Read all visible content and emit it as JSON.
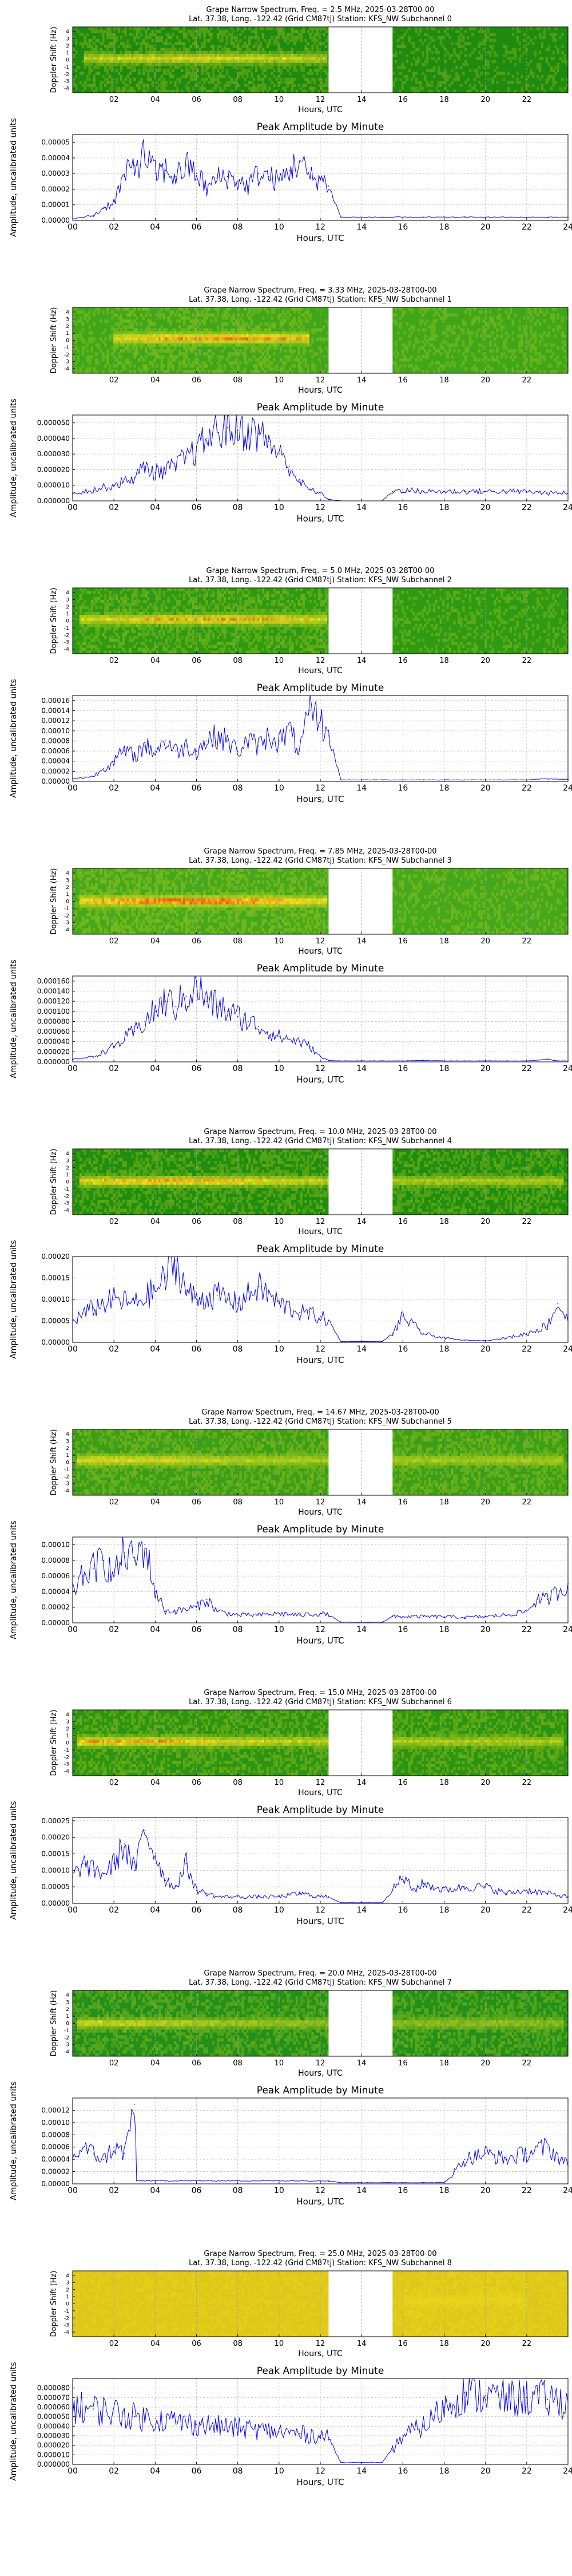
{
  "figure": {
    "y_axis_spec": "Doppler Shift (Hz)",
    "y_axis_amp": "Amplitude, uncalibrated units",
    "x_axis": "Hours, UTC",
    "amp_title": "Peak Amplitude by Minute",
    "spec_yticks": [
      "4",
      "3",
      "2",
      "1",
      "0",
      "-1",
      "-2",
      "-3",
      "-4"
    ],
    "xticks_spec": [
      "02",
      "04",
      "06",
      "08",
      "10",
      "12",
      "14",
      "16",
      "18",
      "20",
      "22"
    ],
    "xticks_amp": [
      "00",
      "02",
      "04",
      "06",
      "08",
      "10",
      "12",
      "14",
      "16",
      "18",
      "20",
      "22",
      "24"
    ]
  },
  "chart_data": [
    {
      "type": "heatmap",
      "subchannel": 0,
      "title_line1": "Grape Narrow Spectrum, Freq. = 2.5 MHz, 2025-03-28T00-00",
      "title_line2": "Lat. 37.38, Long. -122.42 (Grid CM87tj) Station: KFS_NW Subchannel 0",
      "xlabel": "Hours, UTC",
      "ylabel": "Doppler Shift (Hz)",
      "xlim": [
        0,
        24
      ],
      "ylim": [
        -5,
        5
      ],
      "gap_hours": [
        12.4,
        15.5
      ],
      "background": "#1e8a10",
      "signal": {
        "center_hz": 0.2,
        "start": 0.5,
        "end": 12.3,
        "peak_hour": 6.0,
        "intensity": 0.7
      }
    },
    {
      "type": "line",
      "subchannel": 0,
      "title": "Peak Amplitude by Minute",
      "xlabel": "Hours, UTC",
      "ylabel": "Amplitude, uncalibrated units",
      "xlim": [
        0,
        24
      ],
      "ylim": [
        0,
        5.5e-05
      ],
      "ytick_labels": [
        "0.00000",
        "0.00001",
        "0.00002",
        "0.00003",
        "0.00004",
        "0.00005"
      ],
      "x": [
        0,
        1,
        1.5,
        2,
        2.5,
        3,
        3.5,
        4,
        4.5,
        5,
        5.5,
        6,
        6.5,
        7,
        7.5,
        8,
        8.5,
        9,
        9.5,
        10,
        10.5,
        11,
        11.5,
        12,
        12.4,
        13,
        14,
        15,
        16,
        17,
        18,
        19,
        20,
        21,
        22,
        23,
        24
      ],
      "y": [
        1e-06,
        3e-06,
        8e-06,
        1.2e-05,
        2.8e-05,
        3.5e-05,
        4.2e-05,
        3e-05,
        3.2e-05,
        2.8e-05,
        3.5e-05,
        3e-05,
        2e-05,
        2.7e-05,
        2.8e-05,
        2.5e-05,
        2.2e-05,
        3e-05,
        2.8e-05,
        2.5e-05,
        3.2e-05,
        3.8e-05,
        2.7e-05,
        2.7e-05,
        2.2e-05,
        2e-06,
        2e-06,
        2e-06,
        2e-06,
        2e-06,
        2e-06,
        2e-06,
        2e-06,
        2e-06,
        2e-06,
        2e-06,
        2e-06
      ]
    },
    {
      "type": "heatmap",
      "subchannel": 1,
      "title_line1": "Grape Narrow Spectrum, Freq. = 3.33 MHz, 2025-03-28T00-00",
      "title_line2": "Lat. 37.38, Long. -122.42 (Grid CM87tj) Station: KFS_NW Subchannel 1",
      "xlabel": "Hours, UTC",
      "ylabel": "Doppler Shift (Hz)",
      "xlim": [
        0,
        24
      ],
      "ylim": [
        -5,
        5
      ],
      "gap_hours": [
        12.4,
        15.5
      ],
      "background": "#3fa61a",
      "signal": {
        "center_hz": 0.3,
        "start": 2.0,
        "end": 11.5,
        "peak_hour": 7.5,
        "intensity": 0.9
      }
    },
    {
      "type": "line",
      "subchannel": 1,
      "title": "Peak Amplitude by Minute",
      "xlabel": "Hours, UTC",
      "ylabel": "Amplitude, uncalibrated units",
      "xlim": [
        0,
        24
      ],
      "ylim": [
        0,
        5.5e-05
      ],
      "ytick_labels": [
        "0.000000",
        "0.000010",
        "0.000020",
        "0.000030",
        "0.000040",
        "0.000050"
      ],
      "x": [
        0,
        1,
        2,
        3,
        3.5,
        4,
        5,
        5.5,
        6,
        6.5,
        7,
        7.5,
        8,
        8.5,
        9,
        9.5,
        10,
        10.5,
        11,
        11.5,
        12,
        12.4,
        13,
        14,
        15,
        15.5,
        16,
        17,
        18,
        19,
        20,
        21,
        22,
        23,
        24
      ],
      "y": [
        5e-06,
        7e-06,
        1e-05,
        1.5e-05,
        2.2e-05,
        1.8e-05,
        2.2e-05,
        2.8e-05,
        3.2e-05,
        4e-05,
        4.5e-05,
        4.7e-05,
        4.5e-05,
        4.4e-05,
        4.3e-05,
        3.8e-05,
        3e-05,
        2.2e-05,
        1.2e-05,
        7e-06,
        5e-06,
        1e-06,
        0.0,
        0.0,
        0.0,
        6e-06,
        7e-06,
        6e-06,
        6e-06,
        6e-06,
        6e-06,
        6e-06,
        6e-06,
        5e-06,
        5e-06
      ]
    },
    {
      "type": "heatmap",
      "subchannel": 2,
      "title_line1": "Grape Narrow Spectrum, Freq. = 5.0 MHz, 2025-03-28T00-00",
      "title_line2": "Lat. 37.38, Long. -122.42 (Grid CM87tj) Station: KFS_NW Subchannel 2",
      "xlabel": "Hours, UTC",
      "ylabel": "Doppler Shift (Hz)",
      "xlim": [
        0,
        24
      ],
      "ylim": [
        -5,
        5
      ],
      "gap_hours": [
        12.4,
        15.5
      ],
      "background": "#2e9a14",
      "signal": {
        "center_hz": 0.2,
        "start": 0.3,
        "end": 12.3,
        "peak_hour": 7.0,
        "intensity": 0.85
      }
    },
    {
      "type": "line",
      "subchannel": 2,
      "title": "Peak Amplitude by Minute",
      "xlabel": "Hours, UTC",
      "ylabel": "Amplitude, uncalibrated units",
      "xlim": [
        0,
        24
      ],
      "ylim": [
        0,
        0.00017
      ],
      "ytick_labels": [
        "0.00000",
        "0.00002",
        "0.00004",
        "0.00006",
        "0.00008",
        "0.00010",
        "0.00012",
        "0.00014",
        "0.00016"
      ],
      "x": [
        0,
        1,
        1.5,
        2,
        2.5,
        3,
        3.5,
        4,
        4.5,
        5,
        5.5,
        6,
        6.5,
        7,
        7.5,
        8,
        8.5,
        9,
        9.5,
        10,
        10.5,
        11,
        11.5,
        12,
        12.4,
        13,
        14,
        15,
        16,
        17,
        18,
        19,
        20,
        21,
        22,
        23,
        24
      ],
      "y": [
        5e-06,
        1e-05,
        2.5e-05,
        4e-05,
        6e-05,
        5e-05,
        7e-05,
        6e-05,
        8e-05,
        6e-05,
        7e-05,
        6e-05,
        8e-05,
        9e-05,
        8e-05,
        6e-05,
        8e-05,
        7e-05,
        9e-05,
        8e-05,
        0.0001,
        6e-05,
        0.00014,
        0.00012,
        9e-05,
        3e-06,
        3e-06,
        3e-06,
        3e-06,
        3e-06,
        3e-06,
        3e-06,
        3e-06,
        3e-06,
        3e-06,
        5e-06,
        4e-06
      ]
    },
    {
      "type": "heatmap",
      "subchannel": 3,
      "title_line1": "Grape Narrow Spectrum, Freq. = 7.85 MHz, 2025-03-28T00-00",
      "title_line2": "Lat. 37.38, Long. -122.42 (Grid CM87tj) Station: KFS_NW Subchannel 3",
      "xlabel": "Hours, UTC",
      "ylabel": "Doppler Shift (Hz)",
      "xlim": [
        0,
        24
      ],
      "ylim": [
        -5,
        5
      ],
      "gap_hours": [
        12.4,
        15.5
      ],
      "background": "#45a81c",
      "signal": {
        "center_hz": 0.0,
        "start": 0.3,
        "end": 12.3,
        "peak_hour": 5.5,
        "intensity": 1.0
      }
    },
    {
      "type": "line",
      "subchannel": 3,
      "title": "Peak Amplitude by Minute",
      "xlabel": "Hours, UTC",
      "ylabel": "Amplitude, uncalibrated units",
      "xlim": [
        0,
        24
      ],
      "ylim": [
        0,
        0.00017
      ],
      "ytick_labels": [
        "0.000000",
        "0.000020",
        "0.000040",
        "0.000060",
        "0.000080",
        "0.000100",
        "0.000120",
        "0.000140",
        "0.000160"
      ],
      "x": [
        0,
        1,
        2,
        3,
        3.5,
        4,
        4.5,
        5,
        5.5,
        6,
        6.5,
        7,
        7.5,
        8,
        8.5,
        9,
        10,
        11,
        11.5,
        12,
        12.4,
        13,
        14,
        15,
        16,
        17,
        18,
        19,
        20,
        21,
        22,
        23,
        23.5,
        24
      ],
      "y": [
        5e-06,
        1e-05,
        3e-05,
        6e-05,
        8e-05,
        0.0001,
        0.00012,
        0.00011,
        0.00013,
        0.00015,
        0.00012,
        0.00011,
        0.0001,
        9e-05,
        8e-05,
        7e-05,
        5e-05,
        4e-05,
        3e-05,
        1e-05,
        3e-06,
        2e-06,
        2e-06,
        2e-06,
        2e-06,
        3e-06,
        2e-06,
        2e-06,
        2e-06,
        2e-06,
        2e-06,
        5e-06,
        2e-06,
        2e-06
      ]
    },
    {
      "type": "heatmap",
      "subchannel": 4,
      "title_line1": "Grape Narrow Spectrum, Freq. = 10.0 MHz, 2025-03-28T00-00",
      "title_line2": "Lat. 37.38, Long. -122.42 (Grid CM87tj) Station: KFS_NW Subchannel 4",
      "xlabel": "Hours, UTC",
      "ylabel": "Doppler Shift (Hz)",
      "xlim": [
        0,
        24
      ],
      "ylim": [
        -5,
        5
      ],
      "gap_hours": [
        12.4,
        15.5
      ],
      "background": "#1f8d10",
      "signal": {
        "center_hz": 0.1,
        "start": 0.3,
        "end": 23.8,
        "peak_hour": 5.0,
        "intensity": 0.85
      }
    },
    {
      "type": "line",
      "subchannel": 4,
      "title": "Peak Amplitude by Minute",
      "xlabel": "Hours, UTC",
      "ylabel": "Amplitude, uncalibrated units",
      "xlim": [
        0,
        24
      ],
      "ylim": [
        0,
        0.0002
      ],
      "ytick_labels": [
        "0.00000",
        "0.00005",
        "0.00010",
        "0.00015",
        "0.00020"
      ],
      "x": [
        0,
        1,
        2,
        3,
        4,
        4.5,
        5,
        5.5,
        6,
        7,
        8,
        9,
        10,
        11,
        12,
        12.4,
        13,
        14,
        15,
        15.5,
        16,
        17,
        18,
        19,
        20,
        21,
        22,
        23,
        23.5,
        24
      ],
      "y": [
        5e-05,
        8e-05,
        0.0001,
        9e-05,
        0.00012,
        0.00015,
        0.00019,
        0.00012,
        0.0001,
        0.00011,
        9e-05,
        0.00013,
        9e-05,
        7e-05,
        6e-05,
        5e-05,
        2e-06,
        2e-06,
        2e-06,
        2e-05,
        6e-05,
        2e-05,
        1e-05,
        5e-06,
        4e-06,
        1e-05,
        2e-05,
        4e-05,
        9e-05,
        5e-05
      ]
    },
    {
      "type": "heatmap",
      "subchannel": 5,
      "title_line1": "Grape Narrow Spectrum, Freq. = 14.67 MHz, 2025-03-28T00-00",
      "title_line2": "Lat. 37.38, Long. -122.42 (Grid CM87tj) Station: KFS_NW Subchannel 5",
      "xlabel": "Hours, UTC",
      "ylabel": "Doppler Shift (Hz)",
      "xlim": [
        0,
        24
      ],
      "ylim": [
        -5,
        5
      ],
      "gap_hours": [
        12.4,
        15.5
      ],
      "background": "#3a9e18",
      "signal": {
        "center_hz": 0.3,
        "start": 0.2,
        "end": 23.8,
        "peak_hour": 1.5,
        "intensity": 0.7
      }
    },
    {
      "type": "line",
      "subchannel": 5,
      "title": "Peak Amplitude by Minute",
      "xlabel": "Hours, UTC",
      "ylabel": "Amplitude, uncalibrated units",
      "xlim": [
        0,
        24
      ],
      "ylim": [
        0,
        0.00011
      ],
      "ytick_labels": [
        "0.00000",
        "0.00002",
        "0.00004",
        "0.00006",
        "0.00008",
        "0.00010"
      ],
      "x": [
        0,
        0.5,
        1,
        1.5,
        2,
        2.5,
        3,
        3.5,
        4,
        4.5,
        5,
        6,
        6.5,
        7,
        8,
        9,
        10,
        11,
        12,
        12.4,
        13,
        14,
        15,
        15.5,
        16,
        17,
        18,
        19,
        20,
        21,
        22,
        22.5,
        23,
        24
      ],
      "y": [
        4e-05,
        6e-05,
        7e-05,
        8e-05,
        6e-05,
        9e-05,
        8e-05,
        0.0001,
        4e-05,
        1.5e-05,
        1.5e-05,
        2e-05,
        3e-05,
        1.5e-05,
        1e-05,
        1e-05,
        1.2e-05,
        1e-05,
        1.2e-05,
        1e-05,
        1e-06,
        1e-06,
        1e-06,
        8e-06,
        8e-06,
        8e-06,
        8e-06,
        7e-06,
        8e-06,
        1e-05,
        1.5e-05,
        3e-05,
        3e-05,
        5e-05
      ]
    },
    {
      "type": "heatmap",
      "subchannel": 6,
      "title_line1": "Grape Narrow Spectrum, Freq. = 15.0 MHz, 2025-03-28T00-00",
      "title_line2": "Lat. 37.38, Long. -122.42 (Grid CM87tj) Station: KFS_NW Subchannel 6",
      "xlabel": "Hours, UTC",
      "ylabel": "Doppler Shift (Hz)",
      "xlim": [
        0,
        24
      ],
      "ylim": [
        -5,
        5
      ],
      "gap_hours": [
        12.4,
        15.5
      ],
      "background": "#2b9412",
      "signal": {
        "center_hz": 0.2,
        "start": 0.2,
        "end": 23.8,
        "peak_hour": 2.5,
        "intensity": 0.85
      }
    },
    {
      "type": "line",
      "subchannel": 6,
      "title": "Peak Amplitude by Minute",
      "xlabel": "Hours, UTC",
      "ylabel": "Amplitude, uncalibrated units",
      "xlim": [
        0,
        24
      ],
      "ylim": [
        0,
        0.00026
      ],
      "ytick_labels": [
        "0.00000",
        "0.00005",
        "0.00010",
        "0.00015",
        "0.00020",
        "0.00025"
      ],
      "x": [
        0,
        0.5,
        1,
        1.5,
        2,
        2.5,
        3,
        3.5,
        4,
        4.5,
        5,
        5.5,
        6,
        6.5,
        7,
        8,
        9,
        10,
        11,
        12,
        12.4,
        13,
        14,
        15,
        15.5,
        16,
        16.5,
        17,
        18,
        19,
        20,
        21,
        22,
        23,
        24
      ],
      "y": [
        8e-05,
        0.00012,
        0.0001,
        9e-05,
        0.00012,
        0.00018,
        0.0001,
        0.00022,
        0.00015,
        7e-05,
        5e-05,
        0.00012,
        4e-05,
        3e-05,
        2e-05,
        2e-05,
        2e-05,
        2e-05,
        3e-05,
        2e-05,
        2e-05,
        2e-06,
        2e-06,
        2e-06,
        4e-05,
        8e-05,
        4e-05,
        6e-05,
        4e-05,
        5e-05,
        5e-05,
        3e-05,
        4e-05,
        3e-05,
        2e-05
      ]
    },
    {
      "type": "heatmap",
      "subchannel": 7,
      "title_line1": "Grape Narrow Spectrum, Freq. = 20.0 MHz, 2025-03-28T00-00",
      "title_line2": "Lat. 37.38, Long. -122.42 (Grid CM87tj) Station: KFS_NW Subchannel 7",
      "xlabel": "Hours, UTC",
      "ylabel": "Doppler Shift (Hz)",
      "xlim": [
        0,
        24
      ],
      "ylim": [
        -5,
        5
      ],
      "gap_hours": [
        12.4,
        15.5
      ],
      "background": "#22901a",
      "signal": {
        "center_hz": 0.0,
        "start": 0.2,
        "end": 23.8,
        "peak_hour": 1.5,
        "intensity": 0.6
      }
    },
    {
      "type": "line",
      "subchannel": 7,
      "title": "Peak Amplitude by Minute",
      "xlabel": "Hours, UTC",
      "ylabel": "Amplitude, uncalibrated units",
      "xlim": [
        0,
        24
      ],
      "ylim": [
        0,
        0.00014
      ],
      "ytick_labels": [
        "0.00000",
        "0.00002",
        "0.00004",
        "0.00006",
        "0.00008",
        "0.00010",
        "0.00012"
      ],
      "x": [
        0,
        0.5,
        1,
        1.5,
        2,
        2.5,
        3,
        3.1,
        4,
        6,
        8,
        10,
        12,
        12.4,
        13,
        14,
        15,
        16,
        17,
        18,
        18.5,
        19,
        20,
        21,
        22,
        23,
        24
      ],
      "y": [
        4e-05,
        6e-05,
        5e-05,
        4e-05,
        6e-05,
        5e-05,
        0.00013,
        5e-06,
        5e-06,
        5e-06,
        5e-06,
        5e-06,
        5e-06,
        5e-06,
        2e-06,
        2e-06,
        2e-06,
        2e-06,
        2e-06,
        2e-06,
        2e-05,
        4e-05,
        5e-05,
        4e-05,
        5e-05,
        6e-05,
        3e-05
      ]
    },
    {
      "type": "heatmap",
      "subchannel": 8,
      "title_line1": "Grape Narrow Spectrum, Freq. = 25.0 MHz, 2025-03-28T00-00",
      "title_line2": "Lat. 37.38, Long. -122.42 (Grid CM87tj) Station: KFS_NW Subchannel 8",
      "xlabel": "Hours, UTC",
      "ylabel": "Doppler Shift (Hz)",
      "xlim": [
        0,
        24
      ],
      "ylim": [
        -5,
        5
      ],
      "gap_hours": [
        12.4,
        15.5
      ],
      "background": "#e0c81a",
      "signal": {
        "center_hz": 0.5,
        "start": 16.0,
        "end": 22.0,
        "peak_hour": 19.0,
        "intensity": 0.25
      }
    },
    {
      "type": "line",
      "subchannel": 8,
      "title": "Peak Amplitude by Minute",
      "xlabel": "Hours, UTC",
      "ylabel": "Amplitude, uncalibrated units",
      "xlim": [
        0,
        24
      ],
      "ylim": [
        0,
        9e-05
      ],
      "ytick_labels": [
        "0.000000",
        "0.000010",
        "0.000020",
        "0.000030",
        "0.000040",
        "0.000050",
        "0.000060",
        "0.000070",
        "0.000080"
      ],
      "x": [
        0,
        1,
        2,
        3,
        4,
        5,
        6,
        7,
        8,
        9,
        10,
        11,
        12,
        12.4,
        13,
        14,
        15,
        15.5,
        16,
        17,
        18,
        19,
        20,
        21,
        22,
        23,
        24
      ],
      "y": [
        6e-05,
        5.8e-05,
        5.5e-05,
        5e-05,
        4.8e-05,
        4.5e-05,
        4.2e-05,
        4e-05,
        3.8e-05,
        3.6e-05,
        3.4e-05,
        3.2e-05,
        3e-05,
        2.8e-05,
        2e-06,
        2e-06,
        2e-06,
        1.5e-05,
        3e-05,
        4e-05,
        6e-05,
        7.5e-05,
        7.2e-05,
        6.8e-05,
        7e-05,
        6.8e-05,
        6.6e-05
      ]
    }
  ]
}
